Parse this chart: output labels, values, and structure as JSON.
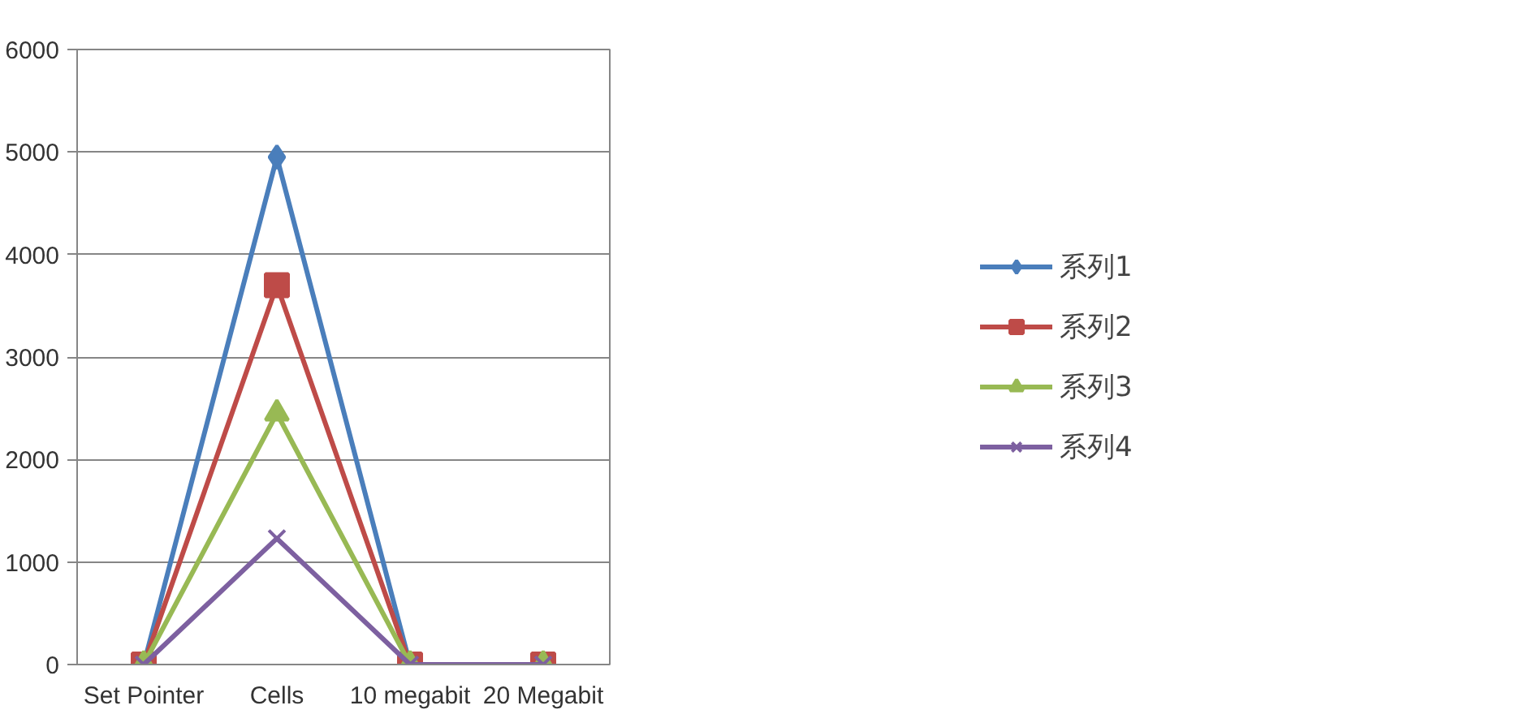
{
  "chart_data": {
    "type": "line",
    "categories": [
      "Set Pointer",
      "Cells",
      "10 megabit",
      "20 Megabit"
    ],
    "series": [
      {
        "name": "系列1",
        "color": "#4a7ebb",
        "marker": "diamond",
        "values": [
          0,
          4950,
          0,
          0
        ]
      },
      {
        "name": "系列2",
        "color": "#be4b48",
        "marker": "square",
        "values": [
          0,
          3700,
          0,
          0
        ]
      },
      {
        "name": "系列3",
        "color": "#98b954",
        "marker": "triangle",
        "values": [
          0,
          2450,
          0,
          0
        ]
      },
      {
        "name": "系列4",
        "color": "#7d60a0",
        "marker": "cross",
        "values": [
          0,
          1230,
          0,
          0
        ]
      }
    ],
    "ylim": [
      0,
      6000
    ],
    "yticks": [
      0,
      1000,
      2000,
      3000,
      4000,
      5000,
      6000
    ],
    "grid": "y",
    "legend": "right",
    "line_style": "solid"
  }
}
